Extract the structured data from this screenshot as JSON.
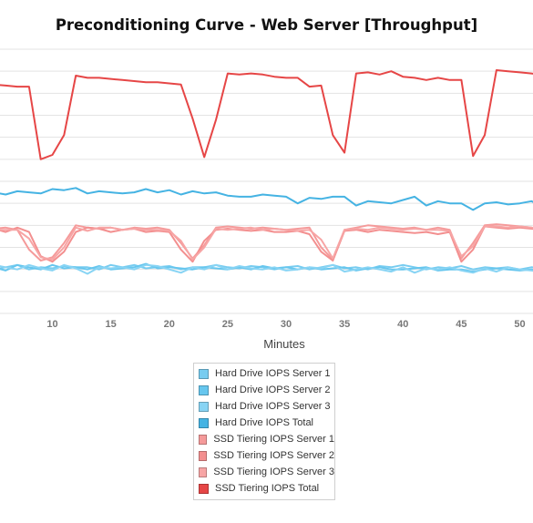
{
  "chart_data": {
    "type": "line",
    "title": "Preconditioning Curve - Web Server [Throughput]",
    "xlabel": "Minutes",
    "ylabel": "",
    "xlim": [
      1,
      52
    ],
    "ylim": [
      0,
      12
    ],
    "x_ticks": [
      10,
      15,
      20,
      25,
      30,
      35,
      40,
      45,
      50
    ],
    "x_tick_labels": [
      "10",
      "15",
      "20",
      "25",
      "30",
      "35",
      "40",
      "45",
      "50"
    ],
    "grid": true,
    "legend_position": "bottom",
    "x": [
      1,
      2,
      3,
      4,
      5,
      6,
      7,
      8,
      9,
      10,
      11,
      12,
      13,
      14,
      15,
      16,
      17,
      18,
      19,
      20,
      21,
      22,
      23,
      24,
      25,
      26,
      27,
      28,
      29,
      30,
      31,
      32,
      33,
      34,
      35,
      36,
      37,
      38,
      39,
      40,
      41,
      42,
      43,
      44,
      45,
      46,
      47,
      48,
      49,
      50,
      51,
      52
    ],
    "series": [
      {
        "name": "Hard Drive IOPS Server 1",
        "color": "#77ccf0",
        "values": [
          2.1,
          2.2,
          2.1,
          2.15,
          2.0,
          2.1,
          2.2,
          2.0,
          2.1,
          2.05,
          2.15,
          2.1,
          2.1,
          2.0,
          2.2,
          2.1,
          2.2,
          2.05,
          2.1,
          2.15,
          2.0,
          2.1,
          2.1,
          2.2,
          2.1,
          2.05,
          2.15,
          2.1,
          2.0,
          2.1,
          2.15,
          2.0,
          2.1,
          2.2,
          2.05,
          2.1,
          2.0,
          2.15,
          2.1,
          2.2,
          2.1,
          2.0,
          2.1,
          2.05,
          2.15,
          2.0,
          2.1,
          2.05,
          2.1,
          2.0,
          2.1,
          2.05
        ]
      },
      {
        "name": "Hard Drive IOPS Server 2",
        "color": "#66c6ee",
        "values": [
          2.0,
          2.0,
          2.1,
          2.0,
          2.1,
          1.95,
          2.2,
          2.1,
          2.0,
          2.2,
          2.05,
          2.1,
          2.0,
          2.15,
          2.0,
          2.05,
          2.1,
          2.25,
          2.05,
          2.1,
          2.05,
          2.0,
          2.1,
          2.05,
          2.0,
          2.1,
          2.0,
          2.15,
          2.05,
          2.1,
          2.0,
          2.1,
          2.0,
          2.05,
          2.1,
          1.95,
          2.05,
          2.1,
          2.0,
          2.0,
          2.05,
          2.1,
          1.95,
          2.0,
          2.0,
          1.9,
          2.0,
          2.05,
          2.0,
          1.95,
          2.0,
          1.9
        ]
      },
      {
        "name": "Hard Drive IOPS Server 3",
        "color": "#88d4f4",
        "values": [
          2.05,
          2.1,
          2.2,
          2.0,
          2.2,
          2.1,
          2.0,
          2.2,
          2.05,
          1.95,
          2.2,
          2.05,
          1.8,
          2.1,
          2.05,
          2.1,
          2.0,
          2.2,
          2.15,
          2.0,
          1.85,
          2.1,
          2.0,
          2.2,
          2.0,
          2.15,
          2.05,
          2.0,
          2.1,
          1.95,
          2.0,
          2.1,
          2.05,
          2.2,
          1.9,
          2.0,
          2.1,
          2.0,
          1.9,
          2.1,
          1.85,
          2.05,
          2.0,
          2.1,
          1.95,
          1.85,
          2.05,
          1.9,
          2.1,
          2.0,
          1.95,
          1.9
        ]
      },
      {
        "name": "Hard Drive IOPS Total",
        "color": "#45b3e3",
        "values": [
          5.2,
          5.3,
          5.6,
          5.6,
          5.5,
          5.4,
          5.55,
          5.5,
          5.45,
          5.65,
          5.6,
          5.7,
          5.45,
          5.55,
          5.5,
          5.45,
          5.5,
          5.65,
          5.5,
          5.6,
          5.4,
          5.55,
          5.45,
          5.5,
          5.35,
          5.3,
          5.3,
          5.4,
          5.35,
          5.3,
          5.0,
          5.25,
          5.2,
          5.3,
          5.3,
          4.9,
          5.1,
          5.05,
          5.0,
          5.15,
          5.3,
          4.9,
          5.1,
          5.0,
          5.0,
          4.7,
          5.0,
          5.05,
          4.95,
          5.0,
          5.1,
          4.85
        ]
      },
      {
        "name": "SSD Tiering IOPS Server 1",
        "color": "#f59a9a",
        "values": [
          3.9,
          3.8,
          3.9,
          3.9,
          3.85,
          3.9,
          3.8,
          2.9,
          2.4,
          2.55,
          3.2,
          4.0,
          3.9,
          3.85,
          3.9,
          3.8,
          3.9,
          3.85,
          3.9,
          3.8,
          3.2,
          2.5,
          3.1,
          3.9,
          3.95,
          3.9,
          3.85,
          3.9,
          3.85,
          3.8,
          3.85,
          3.9,
          3.0,
          2.45,
          3.8,
          3.9,
          4.0,
          3.95,
          3.9,
          3.85,
          3.9,
          3.8,
          3.9,
          3.8,
          2.5,
          3.2,
          4.0,
          4.05,
          4.0,
          3.95,
          3.9,
          3.85
        ]
      },
      {
        "name": "SSD Tiering IOPS Server 2",
        "color": "#f38f8f",
        "values": [
          3.95,
          3.9,
          3.75,
          3.9,
          3.85,
          3.7,
          3.9,
          3.7,
          2.6,
          2.35,
          2.8,
          3.7,
          3.9,
          3.85,
          3.7,
          3.8,
          3.85,
          3.7,
          3.75,
          3.7,
          2.9,
          2.35,
          3.3,
          3.8,
          3.85,
          3.8,
          3.75,
          3.8,
          3.7,
          3.7,
          3.75,
          3.6,
          2.8,
          2.4,
          3.75,
          3.8,
          3.7,
          3.8,
          3.75,
          3.7,
          3.65,
          3.7,
          3.6,
          3.7,
          2.35,
          2.9,
          3.95,
          3.9,
          3.85,
          3.9,
          3.85,
          3.8
        ]
      },
      {
        "name": "SSD Tiering IOPS Server 3",
        "color": "#f7a5a5",
        "values": [
          3.75,
          3.8,
          3.8,
          3.75,
          3.8,
          3.8,
          3.8,
          3.4,
          2.55,
          2.45,
          3.0,
          3.9,
          3.75,
          3.9,
          3.9,
          3.8,
          3.85,
          3.8,
          3.8,
          3.75,
          3.3,
          2.45,
          3.0,
          3.85,
          3.8,
          3.85,
          3.9,
          3.8,
          3.85,
          3.8,
          3.75,
          3.8,
          3.35,
          2.5,
          3.8,
          3.85,
          3.8,
          3.9,
          3.85,
          3.8,
          3.85,
          3.8,
          3.8,
          3.75,
          2.6,
          3.05,
          3.95,
          3.95,
          3.9,
          3.95,
          3.9,
          3.8
        ]
      },
      {
        "name": "SSD Tiering IOPS Total",
        "color": "#e64646",
        "values": [
          10.6,
          10.4,
          10.5,
          10.45,
          10.4,
          10.35,
          10.3,
          10.3,
          7.0,
          7.2,
          8.1,
          10.8,
          10.7,
          10.7,
          10.65,
          10.6,
          10.55,
          10.5,
          10.5,
          10.45,
          10.4,
          8.85,
          7.1,
          8.8,
          10.9,
          10.85,
          10.9,
          10.85,
          10.75,
          10.7,
          10.7,
          10.3,
          10.35,
          8.1,
          7.3,
          10.9,
          10.95,
          10.85,
          11.0,
          10.75,
          10.7,
          10.6,
          10.7,
          10.6,
          10.6,
          7.15,
          8.1,
          11.05,
          11.0,
          10.95,
          10.9,
          10.8
        ]
      }
    ]
  }
}
